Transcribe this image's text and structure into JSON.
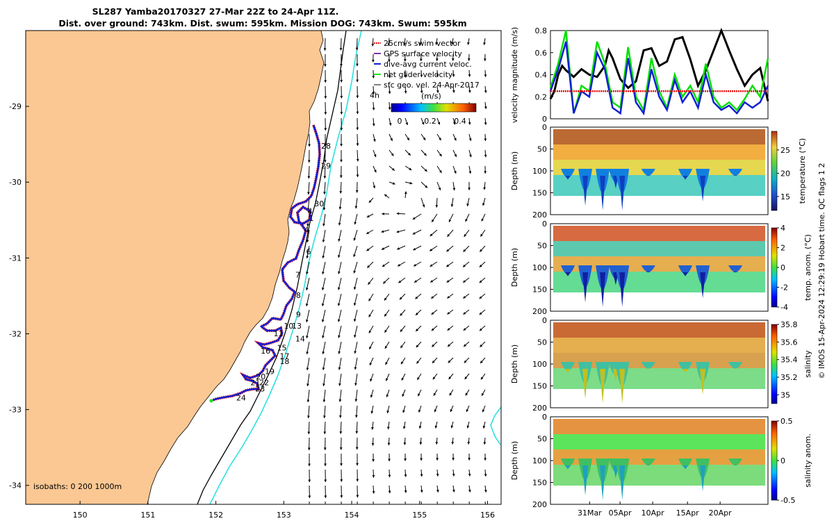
{
  "title": {
    "line1": "SL287 Yamba20170327 27-Mar 22Z to 24-Apr 11Z.",
    "line2": "Dist. over ground: 743km. Dist. swum: 595km. Mission DOG: 743km. Swum: 595km"
  },
  "side_note": "© IMOS 15-Apr-2024 12:29:19 Hobart time. QC flags 1  2",
  "colors": {
    "land": "#fbc894",
    "ocean": "#ffffff",
    "isobath_shallow": "#000000",
    "isobath_deep": "#2ee0e0",
    "gps_track": "#e01010",
    "dive_track": "#1020d0",
    "net_velocity": "#20e020",
    "geo_velocity": "#000000"
  },
  "map": {
    "name": "glider track map",
    "x_ticks": [
      "150",
      "151",
      "152",
      "153",
      "154",
      "155",
      "156"
    ],
    "y_ticks": [
      "-29",
      "-30",
      "-31",
      "-32",
      "-33",
      "-34"
    ],
    "xlim": [
      149.2,
      156.2
    ],
    "ylim": [
      -34.25,
      -28.0
    ],
    "legend": {
      "items": [
        "25cm/s swim vector",
        "GPS surface velocity",
        "dive-avg current veloc.",
        "net glider velocity",
        "sfc geo. vel. 24-Apr-2017"
      ],
      "hours_label": "4h",
      "colorbar_units": "(m/s)",
      "colorbar_ticks": [
        "0",
        "0.2",
        "0.4"
      ]
    },
    "isobath_label": "isobaths: 0   200  1000m",
    "day_labels": [
      {
        "text": "28",
        "lon": 153.55,
        "lat": -29.56
      },
      {
        "text": "29",
        "lon": 153.55,
        "lat": -29.82
      },
      {
        "text": "30",
        "lon": 153.45,
        "lat": -30.32
      },
      {
        "text": "4",
        "lon": 153.35,
        "lat": -30.42
      },
      {
        "text": "1",
        "lon": 153.37,
        "lat": -30.51
      },
      {
        "text": "4",
        "lon": 153.3,
        "lat": -30.66
      },
      {
        "text": "6",
        "lon": 153.33,
        "lat": -30.95
      },
      {
        "text": "7",
        "lon": 153.17,
        "lat": -31.26
      },
      {
        "text": "8",
        "lon": 153.18,
        "lat": -31.53
      },
      {
        "text": "9",
        "lon": 153.18,
        "lat": -31.78
      },
      {
        "text": "10",
        "lon": 153.0,
        "lat": -31.93
      },
      {
        "text": "13",
        "lon": 153.12,
        "lat": -31.93
      },
      {
        "text": "11",
        "lon": 152.85,
        "lat": -32.03
      },
      {
        "text": "14",
        "lon": 153.17,
        "lat": -32.1
      },
      {
        "text": "15",
        "lon": 152.9,
        "lat": -32.22
      },
      {
        "text": "16",
        "lon": 152.66,
        "lat": -32.26
      },
      {
        "text": "17",
        "lon": 152.94,
        "lat": -32.33
      },
      {
        "text": "18",
        "lon": 152.94,
        "lat": -32.4
      },
      {
        "text": "19",
        "lon": 152.72,
        "lat": -32.53
      },
      {
        "text": "20",
        "lon": 152.59,
        "lat": -32.6
      },
      {
        "text": "21",
        "lon": 152.51,
        "lat": -32.68
      },
      {
        "text": "22",
        "lon": 152.64,
        "lat": -32.68
      },
      {
        "text": "23",
        "lon": 152.58,
        "lat": -32.76
      },
      {
        "text": "24",
        "lon": 152.3,
        "lat": -32.88
      }
    ]
  },
  "chart_data": [
    {
      "type": "line",
      "name": "velocity magnitude",
      "ylabel": "velocity magnitude (m/s)",
      "ylim": [
        0,
        0.8
      ],
      "y_ticks": [
        "0",
        "0.2",
        "0.4",
        "0.6",
        "0.8"
      ],
      "x_range_days": [
        0,
        28
      ],
      "series": [
        {
          "name": "geo velocity",
          "color": "#000000",
          "x": [
            0,
            0.5,
            1,
            1.5,
            2,
            3,
            4,
            5,
            6,
            7,
            7.5,
            8,
            9,
            10,
            11,
            11.5,
            12,
            13,
            14,
            15,
            15.5,
            16,
            17,
            18,
            19,
            20,
            21,
            22,
            23,
            24,
            25,
            26,
            27,
            28
          ],
          "values": [
            0.18,
            0.25,
            0.4,
            0.48,
            0.44,
            0.38,
            0.45,
            0.4,
            0.38,
            0.48,
            0.62,
            0.55,
            0.36,
            0.28,
            0.34,
            0.48,
            0.62,
            0.64,
            0.48,
            0.52,
            0.62,
            0.72,
            0.74,
            0.54,
            0.3,
            0.44,
            0.62,
            0.81,
            0.62,
            0.45,
            0.3,
            0.4,
            0.46,
            0.16
          ]
        },
        {
          "name": "net glider velocity",
          "color": "#00e000",
          "x": [
            0,
            1,
            2,
            3,
            4,
            5,
            6,
            7,
            8,
            9,
            10,
            11,
            12,
            13,
            14,
            15,
            16,
            17,
            18,
            19,
            20,
            21,
            22,
            23,
            24,
            25,
            26,
            27,
            28
          ],
          "values": [
            0.28,
            0.5,
            0.8,
            0.05,
            0.3,
            0.25,
            0.7,
            0.5,
            0.15,
            0.1,
            0.65,
            0.2,
            0.08,
            0.55,
            0.25,
            0.1,
            0.4,
            0.2,
            0.3,
            0.15,
            0.5,
            0.2,
            0.1,
            0.15,
            0.08,
            0.18,
            0.3,
            0.2,
            0.55
          ]
        },
        {
          "name": "dive-avg current",
          "color": "#1020d0",
          "x": [
            0,
            1,
            2,
            3,
            4,
            5,
            6,
            7,
            8,
            9,
            10,
            11,
            12,
            13,
            14,
            15,
            16,
            17,
            18,
            19,
            20,
            21,
            22,
            23,
            24,
            25,
            26,
            27,
            28
          ],
          "values": [
            0.25,
            0.45,
            0.7,
            0.05,
            0.25,
            0.2,
            0.6,
            0.45,
            0.1,
            0.05,
            0.55,
            0.15,
            0.05,
            0.45,
            0.2,
            0.08,
            0.35,
            0.15,
            0.25,
            0.1,
            0.4,
            0.15,
            0.08,
            0.12,
            0.05,
            0.15,
            0.1,
            0.15,
            0.3
          ]
        },
        {
          "name": "swim speed",
          "color": "#e01010",
          "x": [
            0,
            28
          ],
          "values": [
            0.25,
            0.25
          ]
        }
      ]
    },
    {
      "type": "heatmap",
      "name": "temperature",
      "ylabel": "Depth (m)",
      "clabel": "temperature (°C)",
      "clim": [
        12,
        29
      ],
      "colorbar_ticks": [
        "15",
        "20",
        "25"
      ],
      "y_ticks": [
        "0",
        "50",
        "100",
        "150",
        "200"
      ]
    },
    {
      "type": "heatmap",
      "name": "temperature anomaly",
      "ylabel": "Depth (m)",
      "clabel": "temp. anom. (°C)",
      "clim": [
        -4,
        4
      ],
      "colorbar_ticks": [
        "-4",
        "-2",
        "0",
        "2",
        "4"
      ],
      "y_ticks": [
        "0",
        "50",
        "100",
        "150",
        "200"
      ]
    },
    {
      "type": "heatmap",
      "name": "salinity",
      "ylabel": "Depth (m)",
      "clabel": "salinity",
      "clim": [
        34.9,
        35.8
      ],
      "colorbar_ticks": [
        "35",
        "35.2",
        "35.4",
        "35.6",
        "35.8"
      ],
      "y_ticks": [
        "0",
        "50",
        "100",
        "150",
        "200"
      ]
    },
    {
      "type": "heatmap",
      "name": "salinity anomaly",
      "ylabel": "Depth (m)",
      "clabel": "salinity anom.",
      "clim": [
        -0.5,
        0.5
      ],
      "colorbar_ticks": [
        "-0.5",
        "0",
        "0.5"
      ],
      "y_ticks": [
        "0",
        "50",
        "100",
        "150",
        "200"
      ],
      "x_ticks": [
        "31Mar",
        "05Apr",
        "10Apr",
        "15Apr",
        "20Apr"
      ]
    }
  ]
}
